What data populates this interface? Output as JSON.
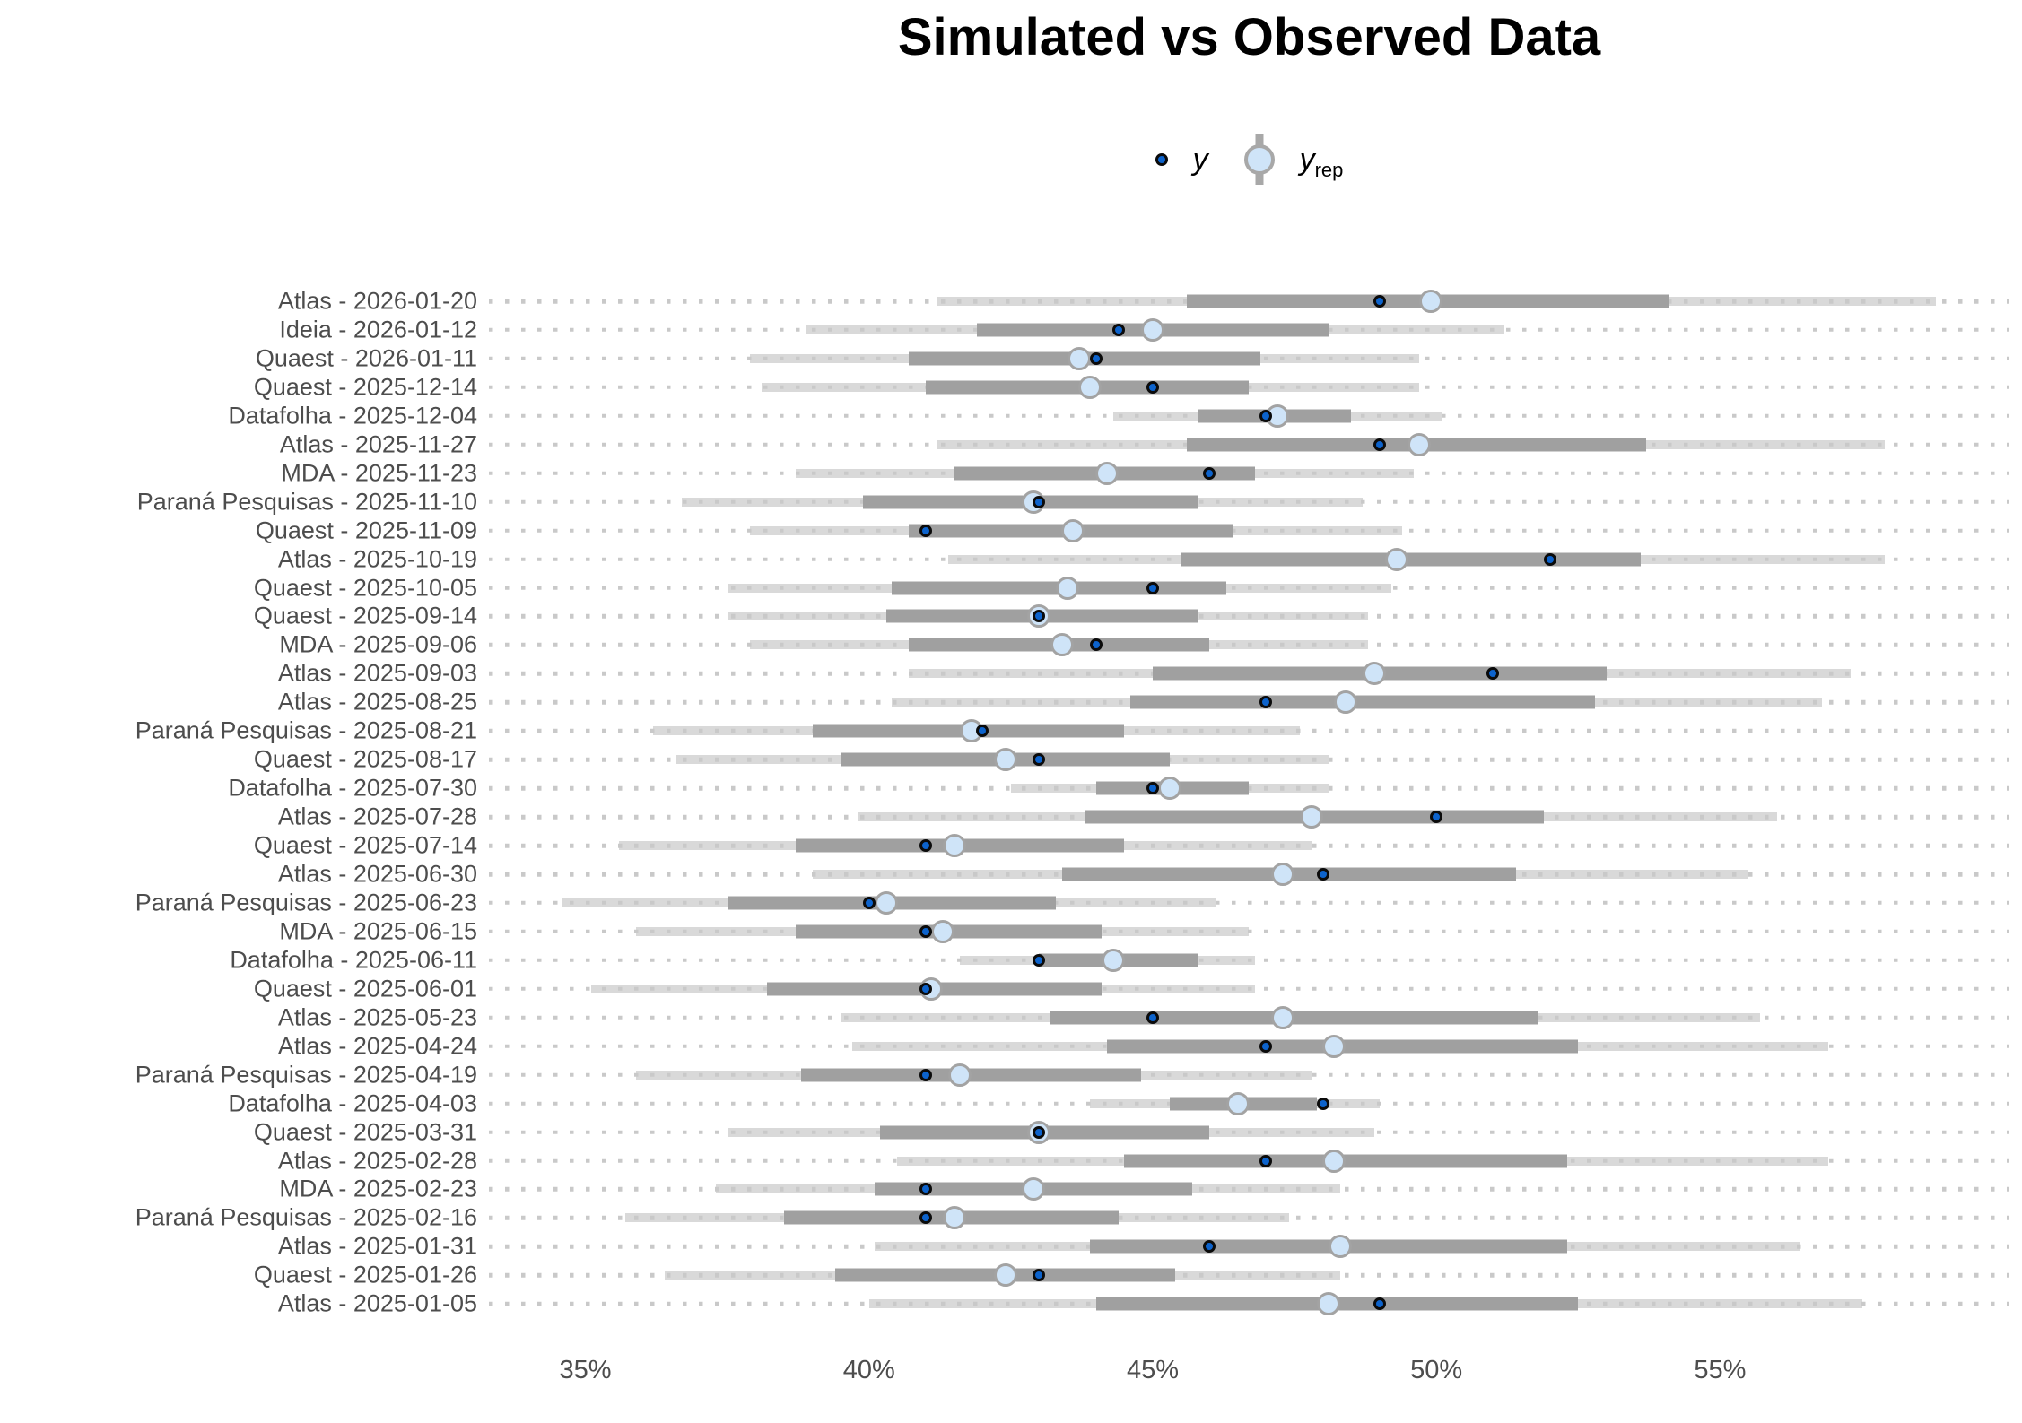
{
  "chart_data": {
    "type": "interval_dot_ppc",
    "title": "Simulated vs Observed Data",
    "legend": {
      "y_label": "y",
      "yrep_label_base": "y",
      "yrep_label_sub": "rep",
      "position": "top-center"
    },
    "x_axis": {
      "tick_values": [
        35,
        40,
        45,
        50,
        55
      ],
      "tick_labels": [
        "35%",
        "40%",
        "45%",
        "50%",
        "55%"
      ],
      "xlim": [
        33.3,
        60.1
      ],
      "grid": "dotted-row-lines"
    },
    "style": {
      "y_point_fill": "#0d63cc",
      "y_point_stroke": "#0b0b0b",
      "yrep_point_fill": "#cfe4f8",
      "yrep_point_stroke": "#a3a3a3",
      "inner_interval_color": "#a0a0a0",
      "outer_interval_color": "#d9d9d9",
      "grid_dash_color": "#c9c9c9",
      "axis_text_color": "#4d4d4d"
    },
    "rows": [
      {
        "label": "Atlas - 2026-01-20",
        "y": 49.0,
        "yrep": 49.9,
        "inner": [
          45.6,
          54.1
        ],
        "outer": [
          41.2,
          58.8
        ]
      },
      {
        "label": "Ideia - 2026-01-12",
        "y": 44.4,
        "yrep": 45.0,
        "inner": [
          41.9,
          48.1
        ],
        "outer": [
          38.9,
          51.2
        ]
      },
      {
        "label": "Quaest - 2026-01-11",
        "y": 44.0,
        "yrep": 43.7,
        "inner": [
          40.7,
          46.9
        ],
        "outer": [
          37.9,
          49.7
        ]
      },
      {
        "label": "Quaest - 2025-12-14",
        "y": 45.0,
        "yrep": 43.9,
        "inner": [
          41.0,
          46.7
        ],
        "outer": [
          38.1,
          49.7
        ]
      },
      {
        "label": "Datafolha - 2025-12-04",
        "y": 47.0,
        "yrep": 47.2,
        "inner": [
          45.8,
          48.5
        ],
        "outer": [
          44.3,
          50.1
        ]
      },
      {
        "label": "Atlas - 2025-11-27",
        "y": 49.0,
        "yrep": 49.7,
        "inner": [
          45.6,
          53.7
        ],
        "outer": [
          41.2,
          57.9
        ]
      },
      {
        "label": "MDA - 2025-11-23",
        "y": 46.0,
        "yrep": 44.2,
        "inner": [
          41.5,
          46.8
        ],
        "outer": [
          38.7,
          49.6
        ]
      },
      {
        "label": "Paraná Pesquisas - 2025-11-10",
        "y": 43.0,
        "yrep": 42.9,
        "inner": [
          39.9,
          45.8
        ],
        "outer": [
          36.7,
          48.7
        ]
      },
      {
        "label": "Quaest - 2025-11-09",
        "y": 41.0,
        "yrep": 43.6,
        "inner": [
          40.7,
          46.4
        ],
        "outer": [
          37.9,
          49.4
        ]
      },
      {
        "label": "Atlas - 2025-10-19",
        "y": 52.0,
        "yrep": 49.3,
        "inner": [
          45.5,
          53.6
        ],
        "outer": [
          41.4,
          57.9
        ]
      },
      {
        "label": "Quaest - 2025-10-05",
        "y": 45.0,
        "yrep": 43.5,
        "inner": [
          40.4,
          46.3
        ],
        "outer": [
          37.5,
          49.2
        ]
      },
      {
        "label": "Quaest - 2025-09-14",
        "y": 43.0,
        "yrep": 43.0,
        "inner": [
          40.3,
          45.8
        ],
        "outer": [
          37.5,
          48.8
        ]
      },
      {
        "label": "MDA - 2025-09-06",
        "y": 44.0,
        "yrep": 43.4,
        "inner": [
          40.7,
          46.0
        ],
        "outer": [
          37.9,
          48.8
        ]
      },
      {
        "label": "Atlas - 2025-09-03",
        "y": 51.0,
        "yrep": 48.9,
        "inner": [
          45.0,
          53.0
        ],
        "outer": [
          40.7,
          57.3
        ]
      },
      {
        "label": "Atlas - 2025-08-25",
        "y": 47.0,
        "yrep": 48.4,
        "inner": [
          44.6,
          52.8
        ],
        "outer": [
          40.4,
          56.8
        ]
      },
      {
        "label": "Paraná Pesquisas - 2025-08-21",
        "y": 42.0,
        "yrep": 41.8,
        "inner": [
          39.0,
          44.5
        ],
        "outer": [
          36.2,
          47.6
        ]
      },
      {
        "label": "Quaest - 2025-08-17",
        "y": 43.0,
        "yrep": 42.4,
        "inner": [
          39.5,
          45.3
        ],
        "outer": [
          36.6,
          48.1
        ]
      },
      {
        "label": "Datafolha - 2025-07-30",
        "y": 45.0,
        "yrep": 45.3,
        "inner": [
          44.0,
          46.7
        ],
        "outer": [
          42.5,
          48.1
        ]
      },
      {
        "label": "Atlas - 2025-07-28",
        "y": 50.0,
        "yrep": 47.8,
        "inner": [
          43.8,
          51.9
        ],
        "outer": [
          39.8,
          56.0
        ]
      },
      {
        "label": "Quaest - 2025-07-14",
        "y": 41.0,
        "yrep": 41.5,
        "inner": [
          38.7,
          44.5
        ],
        "outer": [
          35.6,
          47.8
        ]
      },
      {
        "label": "Atlas - 2025-06-30",
        "y": 48.0,
        "yrep": 47.3,
        "inner": [
          43.4,
          51.4
        ],
        "outer": [
          39.0,
          55.5
        ]
      },
      {
        "label": "Paraná Pesquisas - 2025-06-23",
        "y": 40.0,
        "yrep": 40.3,
        "inner": [
          37.5,
          43.3
        ],
        "outer": [
          34.6,
          46.1
        ]
      },
      {
        "label": "MDA - 2025-06-15",
        "y": 41.0,
        "yrep": 41.3,
        "inner": [
          38.7,
          44.1
        ],
        "outer": [
          35.9,
          46.7
        ]
      },
      {
        "label": "Datafolha - 2025-06-11",
        "y": 43.0,
        "yrep": 44.3,
        "inner": [
          43.0,
          45.8
        ],
        "outer": [
          41.6,
          46.8
        ]
      },
      {
        "label": "Quaest - 2025-06-01",
        "y": 41.0,
        "yrep": 41.1,
        "inner": [
          38.2,
          44.1
        ],
        "outer": [
          35.1,
          46.8
        ]
      },
      {
        "label": "Atlas - 2025-05-23",
        "y": 45.0,
        "yrep": 47.3,
        "inner": [
          43.2,
          51.8
        ],
        "outer": [
          39.5,
          55.7
        ]
      },
      {
        "label": "Atlas - 2025-04-24",
        "y": 47.0,
        "yrep": 48.2,
        "inner": [
          44.2,
          52.5
        ],
        "outer": [
          39.7,
          56.9
        ]
      },
      {
        "label": "Paraná Pesquisas - 2025-04-19",
        "y": 41.0,
        "yrep": 41.6,
        "inner": [
          38.8,
          44.8
        ],
        "outer": [
          35.9,
          47.8
        ]
      },
      {
        "label": "Datafolha - 2025-04-03",
        "y": 48.0,
        "yrep": 46.5,
        "inner": [
          45.3,
          47.9
        ],
        "outer": [
          43.9,
          49.0
        ]
      },
      {
        "label": "Quaest - 2025-03-31",
        "y": 43.0,
        "yrep": 43.0,
        "inner": [
          40.2,
          46.0
        ],
        "outer": [
          37.5,
          48.9
        ]
      },
      {
        "label": "Atlas - 2025-02-28",
        "y": 47.0,
        "yrep": 48.2,
        "inner": [
          44.5,
          52.3
        ],
        "outer": [
          40.5,
          56.9
        ]
      },
      {
        "label": "MDA - 2025-02-23",
        "y": 41.0,
        "yrep": 42.9,
        "inner": [
          40.1,
          45.7
        ],
        "outer": [
          37.3,
          48.3
        ]
      },
      {
        "label": "Paraná Pesquisas - 2025-02-16",
        "y": 41.0,
        "yrep": 41.5,
        "inner": [
          38.5,
          44.4
        ],
        "outer": [
          35.7,
          47.4
        ]
      },
      {
        "label": "Atlas - 2025-01-31",
        "y": 46.0,
        "yrep": 48.3,
        "inner": [
          43.9,
          52.3
        ],
        "outer": [
          40.1,
          56.4
        ]
      },
      {
        "label": "Quaest - 2025-01-26",
        "y": 43.0,
        "yrep": 42.4,
        "inner": [
          39.4,
          45.4
        ],
        "outer": [
          36.4,
          48.3
        ]
      },
      {
        "label": "Atlas - 2025-01-05",
        "y": 49.0,
        "yrep": 48.1,
        "inner": [
          44.0,
          52.5
        ],
        "outer": [
          40.0,
          57.5
        ]
      }
    ]
  }
}
